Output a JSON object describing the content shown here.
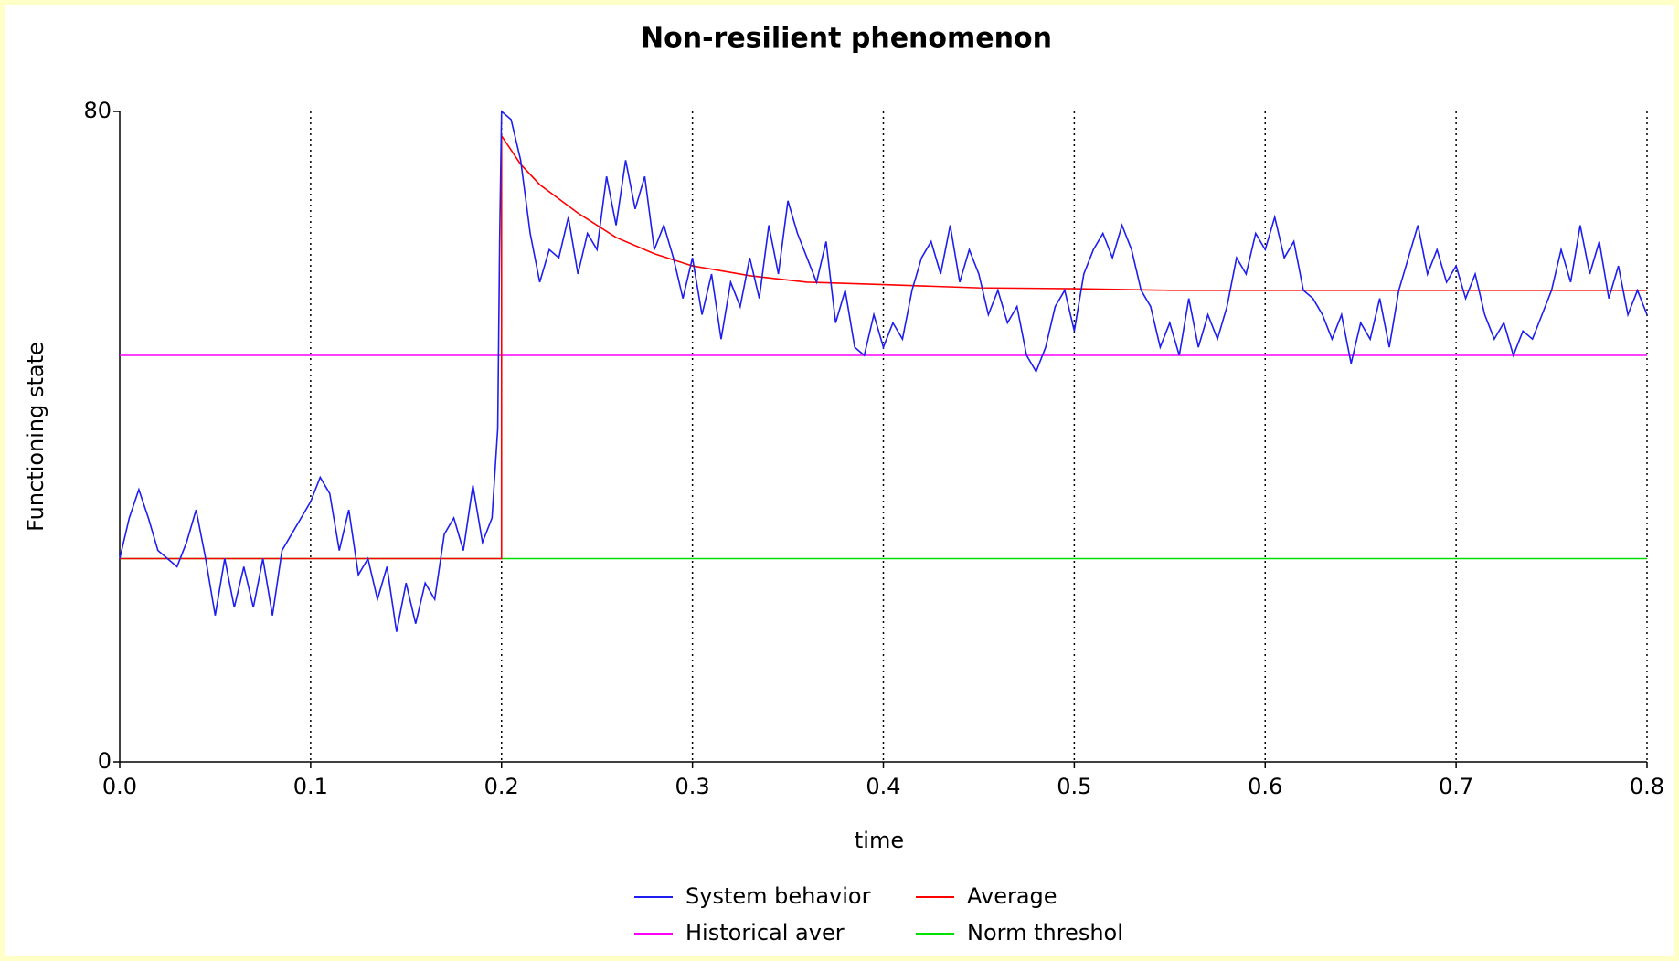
{
  "chart_data": {
    "type": "line",
    "title": "Non-resilient phenomenon",
    "xlabel": "time",
    "ylabel": "Functioning state",
    "xlim": [
      0,
      0.8
    ],
    "ylim": [
      0,
      80
    ],
    "xticks": [
      {
        "value": 0,
        "label": "0.0"
      },
      0.1,
      0.2,
      0.3,
      0.4,
      0.5,
      0.6,
      0.7,
      0.8
    ],
    "yticks": [
      0,
      80
    ],
    "grid": "x",
    "legend": "bottom",
    "series": [
      {
        "name": "System behavior",
        "color": "#1e1ef0",
        "x": [
          0,
          0.005,
          0.01,
          0.015,
          0.02,
          0.025,
          0.03,
          0.035,
          0.04,
          0.045,
          0.05,
          0.055,
          0.06,
          0.065,
          0.07,
          0.075,
          0.08,
          0.085,
          0.09,
          0.095,
          0.1,
          0.105,
          0.11,
          0.115,
          0.12,
          0.125,
          0.13,
          0.135,
          0.14,
          0.145,
          0.15,
          0.155,
          0.16,
          0.165,
          0.17,
          0.175,
          0.18,
          0.185,
          0.19,
          0.195,
          0.198,
          0.199,
          0.2,
          0.205,
          0.21,
          0.215,
          0.22,
          0.225,
          0.23,
          0.235,
          0.24,
          0.245,
          0.25,
          0.255,
          0.26,
          0.265,
          0.27,
          0.275,
          0.28,
          0.285,
          0.29,
          0.295,
          0.3,
          0.305,
          0.31,
          0.315,
          0.32,
          0.325,
          0.33,
          0.335,
          0.34,
          0.345,
          0.35,
          0.355,
          0.36,
          0.365,
          0.37,
          0.375,
          0.38,
          0.385,
          0.39,
          0.395,
          0.4,
          0.405,
          0.41,
          0.415,
          0.42,
          0.425,
          0.43,
          0.435,
          0.44,
          0.445,
          0.45,
          0.455,
          0.46,
          0.465,
          0.47,
          0.475,
          0.48,
          0.485,
          0.49,
          0.495,
          0.5,
          0.505,
          0.51,
          0.515,
          0.52,
          0.525,
          0.53,
          0.535,
          0.54,
          0.545,
          0.55,
          0.555,
          0.56,
          0.565,
          0.57,
          0.575,
          0.58,
          0.585,
          0.59,
          0.595,
          0.6,
          0.605,
          0.61,
          0.615,
          0.62,
          0.625,
          0.63,
          0.635,
          0.64,
          0.645,
          0.65,
          0.655,
          0.66,
          0.665,
          0.67,
          0.675,
          0.68,
          0.685,
          0.69,
          0.695,
          0.7,
          0.705,
          0.71,
          0.715,
          0.72,
          0.725,
          0.73,
          0.735,
          0.74,
          0.745,
          0.75,
          0.755,
          0.76,
          0.765,
          0.77,
          0.775,
          0.78,
          0.785,
          0.79,
          0.795,
          0.8
        ],
        "values": [
          25,
          30,
          33.5,
          30,
          26,
          25,
          24,
          27,
          31,
          25,
          18,
          25,
          19,
          24,
          19,
          25,
          18,
          26,
          28,
          30,
          32,
          35,
          33,
          26,
          31,
          23,
          25,
          20,
          24,
          16,
          22,
          17,
          22,
          20,
          28,
          30,
          26,
          34,
          27,
          30,
          41,
          64,
          80,
          79,
          74,
          65,
          59,
          63,
          62,
          67,
          60,
          65,
          63,
          72,
          66,
          74,
          68,
          72,
          63,
          66,
          62,
          57,
          62,
          55,
          60,
          52,
          59,
          56,
          62,
          57,
          66,
          60,
          69,
          65,
          62,
          59,
          64,
          54,
          58,
          51,
          50,
          55,
          51,
          54,
          52,
          58,
          62,
          64,
          60,
          66,
          59,
          63,
          60,
          55,
          58,
          54,
          56,
          50,
          48,
          51,
          56,
          58,
          53,
          60,
          63,
          65,
          62,
          66,
          63,
          58,
          56,
          51,
          54,
          50,
          57,
          51,
          55,
          52,
          56,
          62,
          60,
          65,
          63,
          67,
          62,
          64,
          58,
          57,
          55,
          52,
          55,
          49,
          54,
          52,
          57,
          51,
          58,
          62,
          66,
          60,
          63,
          59,
          61,
          57,
          60,
          55,
          52,
          54,
          50,
          53,
          52,
          55,
          58,
          63,
          59,
          66,
          60,
          64,
          57,
          61,
          55,
          58,
          55
        ]
      },
      {
        "name": "Average",
        "color": "#ff0000",
        "x": [
          0,
          0.2,
          0.2,
          0.21,
          0.22,
          0.24,
          0.26,
          0.28,
          0.3,
          0.33,
          0.36,
          0.4,
          0.45,
          0.5,
          0.55,
          0.6,
          0.8
        ],
        "values": [
          25,
          25,
          77,
          73.5,
          71,
          67.5,
          64.5,
          62.5,
          61,
          59.8,
          59,
          58.7,
          58.3,
          58.2,
          58,
          58,
          58
        ]
      },
      {
        "name": "Historical aver",
        "color": "#ff00ff",
        "x": [
          0,
          0.8
        ],
        "values": [
          50,
          50
        ]
      },
      {
        "name": "Norm threshol",
        "color": "#00e000",
        "x": [
          0,
          0.8
        ],
        "values": [
          25,
          25
        ]
      }
    ]
  }
}
